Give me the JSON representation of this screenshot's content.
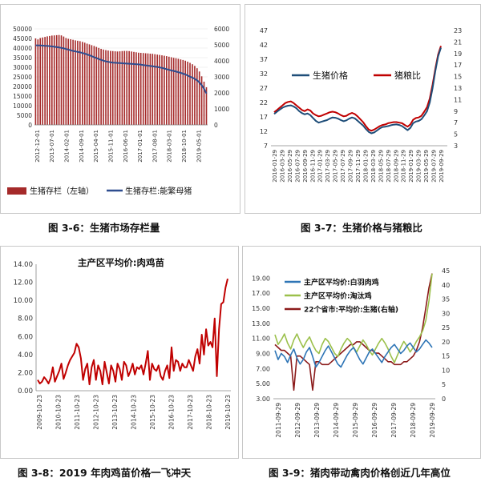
{
  "captions": {
    "c1": "图 3-6：生猪市场存栏量",
    "c2": "图 3-7：生猪价格与猪粮比",
    "c3": "图 3-8：2019 年肉鸡苗价格一飞冲天",
    "c4": "图 3-9：猪肉带动禽肉价格创近几年高位"
  },
  "chart_data": [
    {
      "type": "bar",
      "title": "",
      "x_ticks": [
        "2012-12-01",
        "2013-07-01",
        "2014-02-01",
        "2014-09-01",
        "2015-04-01",
        "2015-11-01",
        "2016-06-01",
        "2017-01-01",
        "2017-08-01",
        "2018-03-01",
        "2018-10-01",
        "2019-05-01"
      ],
      "yleft_ticks": [
        "0",
        "5000",
        "10000",
        "15000",
        "20000",
        "25000",
        "30000",
        "35000",
        "40000",
        "45000",
        "50000"
      ],
      "yright_ticks": [
        "0",
        "1000",
        "2000",
        "3000",
        "4000",
        "5000",
        "6000"
      ],
      "ylim_left": [
        0,
        50000
      ],
      "ylim_right": [
        0,
        6000
      ],
      "legend": {
        "bar": "生猪存栏（左轴）",
        "line": "生猪存栏:能繁母猪"
      },
      "legend_position": "bottom",
      "colors": {
        "bar": "#a52a2a",
        "line": "#2e4d8f"
      },
      "series_bar": [
        45000,
        44500,
        45200,
        45500,
        45800,
        46100,
        46300,
        46500,
        46600,
        46700,
        46800,
        46600,
        46000,
        45200,
        44800,
        44600,
        44300,
        44000,
        43800,
        43600,
        43200,
        42800,
        42300,
        41900,
        41500,
        41100,
        40600,
        40100,
        39600,
        39200,
        38900,
        38700,
        38500,
        38400,
        38300,
        38200,
        38300,
        38400,
        38500,
        38500,
        38400,
        38200,
        38000,
        37800,
        37600,
        37500,
        37400,
        37300,
        37200,
        37100,
        37000,
        36800,
        36600,
        36400,
        36200,
        36000,
        35800,
        35500,
        35200,
        34900,
        34700,
        34400,
        34100,
        33800,
        33400,
        32900,
        32300,
        31600,
        30700,
        29500,
        27800,
        25300,
        22500,
        19600
      ],
      "series_line": [
        4970,
        4960,
        4960,
        4950,
        4940,
        4930,
        4920,
        4900,
        4880,
        4860,
        4840,
        4810,
        4780,
        4740,
        4700,
        4660,
        4620,
        4590,
        4560,
        4530,
        4490,
        4450,
        4400,
        4350,
        4290,
        4230,
        4170,
        4110,
        4060,
        4010,
        3970,
        3940,
        3910,
        3890,
        3880,
        3870,
        3860,
        3850,
        3840,
        3830,
        3820,
        3810,
        3800,
        3790,
        3780,
        3760,
        3740,
        3720,
        3700,
        3680,
        3660,
        3640,
        3620,
        3590,
        3560,
        3520,
        3480,
        3440,
        3400,
        3370,
        3330,
        3290,
        3250,
        3200,
        3150,
        3080,
        3010,
        2950,
        2880,
        2780,
        2650,
        2480,
        2250,
        1960
      ]
    },
    {
      "type": "line",
      "title": "",
      "x_ticks": [
        "2016-01-29",
        "2016-03-29",
        "2016-05-29",
        "2016-07-29",
        "2016-09-29",
        "2016-11-29",
        "2017-01-29",
        "2017-03-29",
        "2017-05-29",
        "2017-07-29",
        "2017-09-29",
        "2017-11-29",
        "2018-01-29",
        "2018-03-29",
        "2018-05-29",
        "2018-07-29",
        "2018-09-29",
        "2018-11-29",
        "2019-01-29",
        "2019-03-29",
        "2019-05-29",
        "2019-07-29",
        "2019-09-29"
      ],
      "yleft_ticks": [
        "7",
        "12",
        "17",
        "22",
        "27",
        "32",
        "37",
        "42",
        "47"
      ],
      "yright_ticks": [
        "3",
        "5",
        "7",
        "9",
        "11",
        "13",
        "15",
        "17",
        "19",
        "21",
        "23"
      ],
      "ylim_left": [
        7,
        47
      ],
      "ylim_right": [
        3,
        23
      ],
      "legend": {
        "a": "生猪价格",
        "b": "猪粮比"
      },
      "legend_position": "top",
      "colors": {
        "a": "#1f4e79",
        "b": "#c00000"
      },
      "series_a": [
        18.0,
        18.8,
        19.5,
        20.2,
        20.6,
        20.9,
        21.0,
        20.6,
        20.0,
        19.0,
        18.3,
        17.9,
        18.2,
        17.6,
        16.6,
        15.6,
        15.0,
        15.3,
        15.6,
        15.9,
        16.4,
        16.8,
        16.7,
        16.4,
        15.9,
        15.5,
        15.8,
        16.4,
        16.8,
        16.5,
        15.7,
        14.8,
        14.0,
        12.8,
        11.8,
        11.3,
        11.6,
        12.3,
        13.0,
        13.5,
        13.6,
        13.8,
        14.1,
        14.3,
        14.4,
        14.2,
        13.8,
        13.1,
        12.4,
        13.2,
        14.8,
        15.4,
        15.6,
        16.2,
        17.5,
        19.0,
        22.0,
        27.0,
        33.0,
        38.0,
        41.0
      ],
      "series_b": [
        8.8,
        9.2,
        9.6,
        10.0,
        10.4,
        10.6,
        10.7,
        10.4,
        10.0,
        9.6,
        9.2,
        9.0,
        9.3,
        9.1,
        8.6,
        8.3,
        8.1,
        8.2,
        8.4,
        8.6,
        8.8,
        8.9,
        8.8,
        8.6,
        8.3,
        8.1,
        8.2,
        8.5,
        8.7,
        8.5,
        8.1,
        7.6,
        7.1,
        6.4,
        5.8,
        5.6,
        5.8,
        6.1,
        6.4,
        6.6,
        6.7,
        6.9,
        7.0,
        7.1,
        7.1,
        7.0,
        6.9,
        6.6,
        6.3,
        6.7,
        7.5,
        7.8,
        7.9,
        8.2,
        8.9,
        9.7,
        11.2,
        13.6,
        16.4,
        18.8,
        20.3
      ]
    },
    {
      "type": "line",
      "title": "主产区平均价:肉鸡苗",
      "x_ticks": [
        "2009-10-23",
        "2010-10-23",
        "2011-10-23",
        "2012-10-23",
        "2013-10-23",
        "2014-10-23",
        "2015-10-23",
        "2016-10-23",
        "2017-10-23",
        "2018-10-23",
        "2019-10-23"
      ],
      "y_ticks": [
        "0.00",
        "2.00",
        "4.00",
        "6.00",
        "8.00",
        "10.00",
        "12.00",
        "14.00"
      ],
      "ylim": [
        0,
        14
      ],
      "colors": {
        "line": "#c00000"
      },
      "series": [
        1.2,
        0.8,
        1.0,
        1.5,
        1.2,
        0.8,
        1.4,
        2.6,
        1.0,
        1.6,
        2.2,
        3.0,
        1.3,
        2.0,
        2.8,
        3.4,
        3.8,
        4.2,
        5.2,
        4.8,
        3.6,
        1.2,
        2.4,
        3.0,
        0.7,
        2.6,
        3.4,
        1.2,
        2.8,
        2.2,
        0.7,
        3.2,
        2.0,
        0.8,
        2.8,
        2.2,
        1.0,
        3.0,
        2.4,
        1.2,
        3.2,
        2.8,
        1.6,
        2.2,
        3.0,
        1.8,
        2.6,
        2.4,
        2.8,
        1.8,
        3.0,
        4.4,
        1.2,
        3.0,
        2.4,
        2.2,
        2.8,
        1.6,
        1.2,
        2.2,
        2.8,
        1.4,
        4.8,
        2.2,
        3.4,
        3.2,
        2.2,
        3.0,
        2.6,
        2.6,
        3.4,
        2.8,
        2.2,
        3.8,
        4.6,
        3.0,
        6.2,
        4.0,
        6.8,
        5.0,
        5.4,
        4.8,
        8.0,
        1.6,
        6.8,
        9.6,
        9.8,
        11.4,
        12.4
      ]
    },
    {
      "type": "line",
      "title": "",
      "x_ticks": [
        "2011-09-29",
        "2012-09-29",
        "2013-09-29",
        "2014-09-29",
        "2015-09-29",
        "2016-09-29",
        "2017-09-29",
        "2018-09-29",
        "2019-09-29"
      ],
      "yleft_ticks": [
        "3.00",
        "5.00",
        "7.00",
        "9.00",
        "11.00",
        "13.00",
        "15.00",
        "17.00",
        "19.00"
      ],
      "yright_ticks": [
        "0",
        "5",
        "10",
        "15",
        "20",
        "25",
        "30",
        "35",
        "40",
        "45"
      ],
      "ylim_left": [
        3,
        20
      ],
      "ylim_right": [
        0,
        45
      ],
      "legend": {
        "a": "主产区平均价:白羽肉鸡",
        "b": "主产区平均价:淘汰鸡",
        "c": "22个省市:平均价:生猪(右轴)"
      },
      "legend_position": "top-left",
      "colors": {
        "a": "#2e75b6",
        "b": "#9bc04b",
        "c": "#8b1a1a"
      },
      "series_a": [
        9.4,
        8.2,
        9.0,
        8.6,
        7.8,
        8.8,
        9.6,
        8.4,
        7.6,
        8.2,
        9.2,
        9.8,
        8.6,
        7.2,
        7.8,
        8.6,
        9.4,
        10.0,
        9.2,
        8.4,
        7.6,
        7.2,
        8.0,
        8.8,
        9.4,
        9.8,
        9.0,
        8.2,
        7.6,
        8.4,
        9.2,
        9.6,
        9.0,
        8.4,
        7.8,
        8.6,
        9.2,
        9.8,
        10.2,
        9.6,
        9.0,
        9.4,
        10.0,
        10.4,
        9.8,
        9.2,
        9.6,
        10.2,
        10.8,
        10.4,
        9.8
      ],
      "series_b": [
        11.5,
        10.2,
        10.8,
        11.6,
        10.4,
        9.6,
        10.8,
        11.6,
        10.6,
        9.8,
        10.6,
        11.2,
        10.2,
        9.4,
        9.0,
        10.2,
        11.0,
        10.6,
        9.8,
        9.0,
        8.6,
        9.6,
        10.4,
        11.0,
        10.6,
        9.8,
        9.2,
        10.0,
        10.8,
        10.2,
        9.4,
        8.8,
        9.6,
        10.4,
        11.0,
        10.4,
        9.6,
        8.6,
        7.8,
        8.8,
        9.8,
        10.6,
        10.0,
        9.2,
        9.8,
        10.6,
        11.2,
        12.0,
        13.4,
        16.0,
        19.6
      ],
      "series_c": [
        19,
        18,
        17,
        17,
        16,
        15,
        3,
        15,
        15,
        14,
        13,
        12,
        3,
        13,
        13,
        12,
        12,
        12,
        13,
        14,
        15,
        16,
        17,
        18,
        19,
        19,
        20,
        20,
        19,
        18,
        17,
        17,
        16,
        16,
        15,
        14,
        13,
        13,
        12,
        12,
        12,
        13,
        13,
        14,
        15,
        17,
        20,
        25,
        32,
        39,
        44
      ]
    }
  ]
}
